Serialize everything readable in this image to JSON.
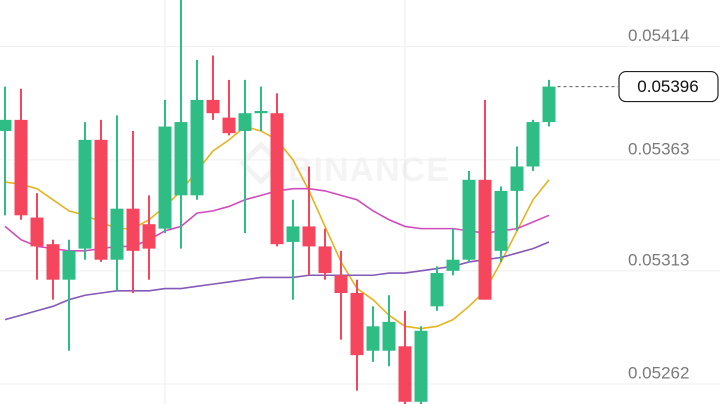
{
  "chart_data": {
    "type": "candlestick",
    "watermark": "BINANCE",
    "ylim": [
      0.05253,
      0.05435
    ],
    "yticks": [
      0.05414,
      0.05363,
      0.05313,
      0.05262
    ],
    "grid": true,
    "up_color": "#2ebd85",
    "down_color": "#f6465d",
    "last_price": 0.05396,
    "ohlc": {
      "open": [
        0.05376,
        0.05381,
        0.05337,
        0.05325,
        0.05309,
        0.05323,
        0.05372,
        0.05318,
        0.05341,
        0.05334,
        0.05332,
        0.05347,
        0.05347,
        0.0539,
        0.05382,
        0.05376,
        0.05384,
        0.05384,
        0.05326,
        0.05333,
        0.05324,
        0.05311,
        0.05303,
        0.05277,
        0.05277,
        0.05279,
        0.05254,
        0.05297,
        0.05313,
        0.05318,
        0.05354,
        0.05322,
        0.05349,
        0.0536,
        0.0538
      ],
      "high": [
        0.05396,
        0.05395,
        0.05348,
        0.05327,
        0.05327,
        0.0538,
        0.05381,
        0.05383,
        0.05376,
        0.05347,
        0.0539,
        0.05436,
        0.05408,
        0.0541,
        0.05399,
        0.05399,
        0.05396,
        0.05393,
        0.05345,
        0.0536,
        0.05332,
        0.05322,
        0.05309,
        0.05297,
        0.05302,
        0.05295,
        0.05288,
        0.05315,
        0.05332,
        0.05358,
        0.0539,
        0.05351,
        0.05369,
        0.05381,
        0.05399
      ],
      "low": [
        0.05338,
        0.05336,
        0.05309,
        0.053,
        0.05277,
        0.05318,
        0.05317,
        0.05304,
        0.05303,
        0.05309,
        0.0533,
        0.05323,
        0.05345,
        0.05381,
        0.05374,
        0.0533,
        0.05376,
        0.05324,
        0.053,
        0.05311,
        0.05309,
        0.05282,
        0.05259,
        0.05272,
        0.0527,
        0.05253,
        0.05253,
        0.05295,
        0.05311,
        0.05317,
        0.053,
        0.05317,
        0.05331,
        0.05358,
        0.05378
      ],
      "close": [
        0.05381,
        0.05338,
        0.05324,
        0.05309,
        0.05322,
        0.05372,
        0.05318,
        0.05341,
        0.05322,
        0.05323,
        0.05378,
        0.0538,
        0.0539,
        0.05384,
        0.05375,
        0.05384,
        0.05385,
        0.05325,
        0.05333,
        0.05324,
        0.05312,
        0.05303,
        0.05275,
        0.05288,
        0.0529,
        0.05254,
        0.05286,
        0.05312,
        0.05318,
        0.05354,
        0.053,
        0.05349,
        0.0536,
        0.0538,
        0.05396
      ]
    },
    "overlays": [
      {
        "color": "#e6b320",
        "values": [
          0.05353,
          0.05352,
          0.0535,
          0.05345,
          0.0534,
          0.05338,
          0.05335,
          0.05332,
          0.05332,
          0.05336,
          0.05342,
          0.05349,
          0.05358,
          0.05367,
          0.05372,
          0.05378,
          0.05376,
          0.05372,
          0.05363,
          0.05349,
          0.05333,
          0.05317,
          0.05305,
          0.053,
          0.05293,
          0.05288,
          0.05287,
          0.05288,
          0.05291,
          0.05297,
          0.05304,
          0.05317,
          0.05331,
          0.05345,
          0.05354
        ]
      },
      {
        "color": "#d14bbd",
        "values": [
          0.05333,
          0.05327,
          0.05324,
          0.05323,
          0.05322,
          0.05322,
          0.05323,
          0.05324,
          0.05324,
          0.05327,
          0.05331,
          0.05333,
          0.05339,
          0.0534,
          0.05342,
          0.05345,
          0.05347,
          0.05349,
          0.0535,
          0.0535,
          0.05349,
          0.05347,
          0.05345,
          0.0534,
          0.05336,
          0.05333,
          0.05332,
          0.05332,
          0.05332,
          0.05331,
          0.0533,
          0.05331,
          0.05332,
          0.05335,
          0.05338
        ]
      },
      {
        "color": "#8459b8",
        "values": [
          0.05291,
          0.05293,
          0.05295,
          0.05297,
          0.053,
          0.05302,
          0.05303,
          0.05304,
          0.05304,
          0.05304,
          0.05305,
          0.05305,
          0.05306,
          0.05307,
          0.05308,
          0.05309,
          0.0531,
          0.0531,
          0.0531,
          0.05311,
          0.05311,
          0.05311,
          0.05311,
          0.05311,
          0.05312,
          0.05312,
          0.05313,
          0.05314,
          0.05315,
          0.05317,
          0.05318,
          0.05319,
          0.05321,
          0.05323,
          0.05326
        ]
      }
    ]
  }
}
